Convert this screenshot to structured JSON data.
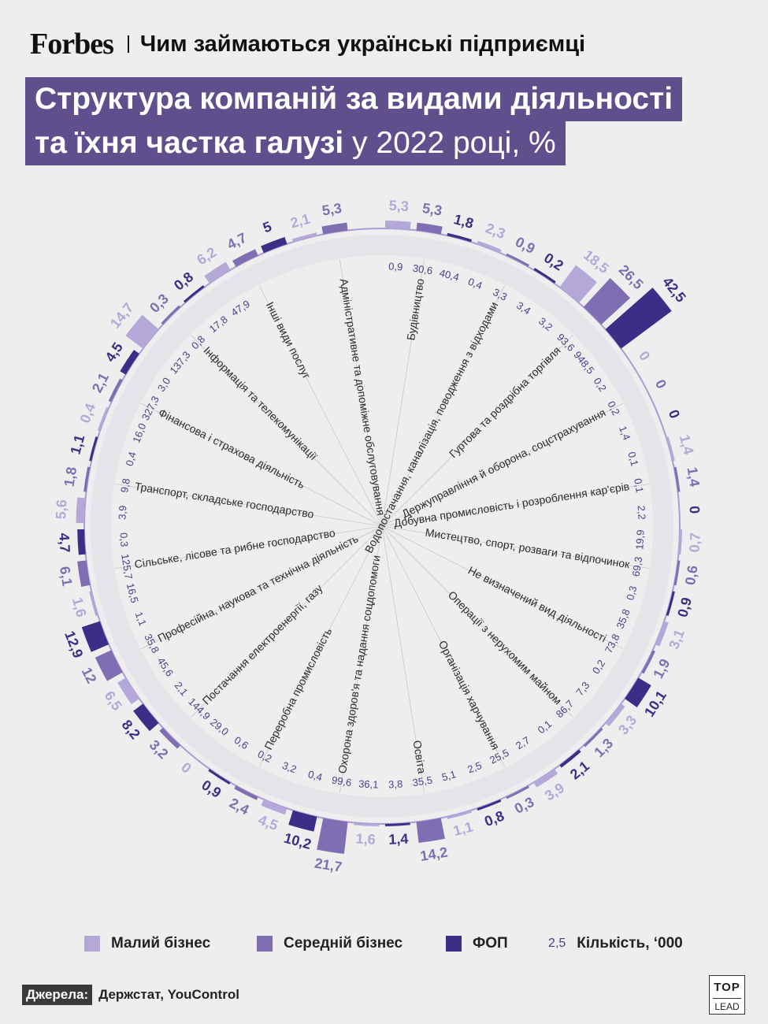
{
  "header": {
    "logo": "Forbes",
    "subtitle": "Чим займаються українські підприємці"
  },
  "title": {
    "line1": "Структура компаній за видами діяльності",
    "line2_bold": "та їхня частка галузі",
    "line2_normal": " у 2022 році, %"
  },
  "colors": {
    "small": "#b4a8d8",
    "medium": "#7f6fb2",
    "fop": "#3a2e86",
    "count_text": "#4a3f8a",
    "title_bg": "#5f4f8c"
  },
  "legend": {
    "small": "Малий бізнес",
    "medium": "Середній бізнес",
    "fop": "ФОП",
    "count_sample": "2,5",
    "count": "Кількість, ‘000"
  },
  "source": {
    "tag": "Джерела:",
    "text": "Держстат, YouControl"
  },
  "brand": {
    "line1": "TOP",
    "line2": "LEAD"
  },
  "chart_data": {
    "type": "radial-bar",
    "series": [
      {
        "name": "Малий бізнес",
        "key": "small"
      },
      {
        "name": "Середній бізнес",
        "key": "medium"
      },
      {
        "name": "ФОП",
        "key": "fop"
      }
    ],
    "categories": [
      {
        "name": "Будівництво",
        "values": [
          5.3,
          5.3,
          1.8
        ],
        "value_labels": [
          "5,3",
          "5,3",
          "1,8"
        ],
        "counts": [
          "0,9",
          "30,6",
          "40,4"
        ]
      },
      {
        "name": "Водопостачання, каналізація, поводження з відходами",
        "values": [
          2.3,
          0.9,
          0.2
        ],
        "value_labels": [
          "2,3",
          "0,9",
          "0,2"
        ],
        "counts": [
          "0,4",
          "3,3",
          "3,4"
        ]
      },
      {
        "name": "Гуртова та роздрібна торгівля",
        "values": [
          18.5,
          26.5,
          42.5
        ],
        "value_labels": [
          "18,5",
          "26,5",
          "42,5"
        ],
        "counts": [
          "3,2",
          "93,6",
          "948,5"
        ]
      },
      {
        "name": "Держуправління й оборона, соцстрахування",
        "values": [
          0,
          0,
          0
        ],
        "value_labels": [
          "0",
          "0",
          "0"
        ],
        "counts": [
          "0,2",
          "0,2",
          "1,4"
        ]
      },
      {
        "name": "Добувна промисловість і розроблення кар'єрів",
        "values": [
          1.4,
          1.4,
          0
        ],
        "value_labels": [
          "1,4",
          "1,4",
          "0"
        ],
        "counts": [
          "0,1",
          "0,1",
          "2,2"
        ]
      },
      {
        "name": "Мистецтво, спорт, розваги та відпочинок",
        "values": [
          0.7,
          0.6,
          0.9
        ],
        "value_labels": [
          "0,7",
          "0,6",
          "0,9"
        ],
        "counts": [
          "19,9",
          "69,3",
          "0,3"
        ]
      },
      {
        "name": "Не визначений вид діяльності",
        "values": [
          3.1,
          1.9,
          10.1
        ],
        "value_labels": [
          "3,1",
          "1,9",
          "10,1"
        ],
        "counts": [
          "35,8",
          "73,8",
          "0,2"
        ]
      },
      {
        "name": "Операції з нерухомим майном",
        "values": [
          3.3,
          1.3,
          2.1
        ],
        "value_labels": [
          "3,3",
          "1,3",
          "2,1"
        ],
        "counts": [
          "7,3",
          "86,7",
          "0,1"
        ]
      },
      {
        "name": "Організація харчування",
        "values": [
          3.9,
          0.3,
          0.8
        ],
        "value_labels": [
          "3,9",
          "0,3",
          "0,8"
        ],
        "counts": [
          "2,7",
          "25,5",
          "2,5"
        ]
      },
      {
        "name": "Освіта",
        "values": [
          1.1,
          14.2,
          1.4
        ],
        "value_labels": [
          "1,1",
          "14,2",
          "1,4"
        ],
        "counts": [
          "5,1",
          "35,5",
          "3,8"
        ]
      },
      {
        "name": "Охорона здоров'я та надання соцдопомоги",
        "values": [
          1.6,
          21.7,
          10.2
        ],
        "value_labels": [
          "1,6",
          "21,7",
          "10,2"
        ],
        "counts": [
          "36,1",
          "99,6",
          "0,4"
        ]
      },
      {
        "name": "Переробна промисловість",
        "values": [
          4.5,
          2.4,
          0.9
        ],
        "value_labels": [
          "4,5",
          "2,4",
          "0,9"
        ],
        "counts": [
          "3,2",
          "0,2",
          "0,6"
        ]
      },
      {
        "name": "Постачання електроенергії, газу",
        "values": [
          0,
          3.2,
          8.2
        ],
        "value_labels": [
          "0",
          "3,2",
          "8,2"
        ],
        "counts": [
          "29,0",
          "144,9",
          "2,1"
        ]
      },
      {
        "name": "Професійна, наукова та технічна діяльність",
        "values": [
          6.5,
          12,
          12.9
        ],
        "value_labels": [
          "6,5",
          "12",
          "12,9"
        ],
        "counts": [
          "45,6",
          "35,8",
          "1,1"
        ]
      },
      {
        "name": "Сільське, лісове та рибне господарство",
        "values": [
          1.6,
          6.1,
          4.7
        ],
        "value_labels": [
          "1,6",
          "6,1",
          "4,7"
        ],
        "counts": [
          "16,5",
          "125,7",
          "0,3"
        ]
      },
      {
        "name": "Транспорт, складське господарство",
        "values": [
          5.6,
          1.8,
          1.1
        ],
        "value_labels": [
          "5,6",
          "1,8",
          "1,1"
        ],
        "counts": [
          "3,9",
          "9,8",
          "0,4"
        ]
      },
      {
        "name": "Фінансова і страхова діяльність",
        "values": [
          0.4,
          2.1,
          4.5
        ],
        "value_labels": [
          "0,4",
          "2,1",
          "4,5"
        ],
        "counts": [
          "16,0",
          "327,3",
          "3,0"
        ]
      },
      {
        "name": "Інформація та телекомунікації",
        "values": [
          14.7,
          0.3,
          0.8
        ],
        "value_labels": [
          "14,7",
          "0,3",
          "0,8"
        ],
        "counts": [
          "137,3",
          "0,8",
          "17,8"
        ]
      },
      {
        "name": "Інші види послуг",
        "values": [
          6.2,
          4.7,
          5
        ],
        "value_labels": [
          "6,2",
          "4,7",
          "5"
        ],
        "counts": [
          "47,9",
          "",
          ""
        ]
      },
      {
        "name": "Адміністративне та допоміжне обслуговування",
        "values": [
          2.1,
          5.3,
          0
        ],
        "value_labels": [
          "2,1",
          "5,3",
          ""
        ],
        "counts": [
          "",
          "",
          ""
        ]
      }
    ]
  }
}
